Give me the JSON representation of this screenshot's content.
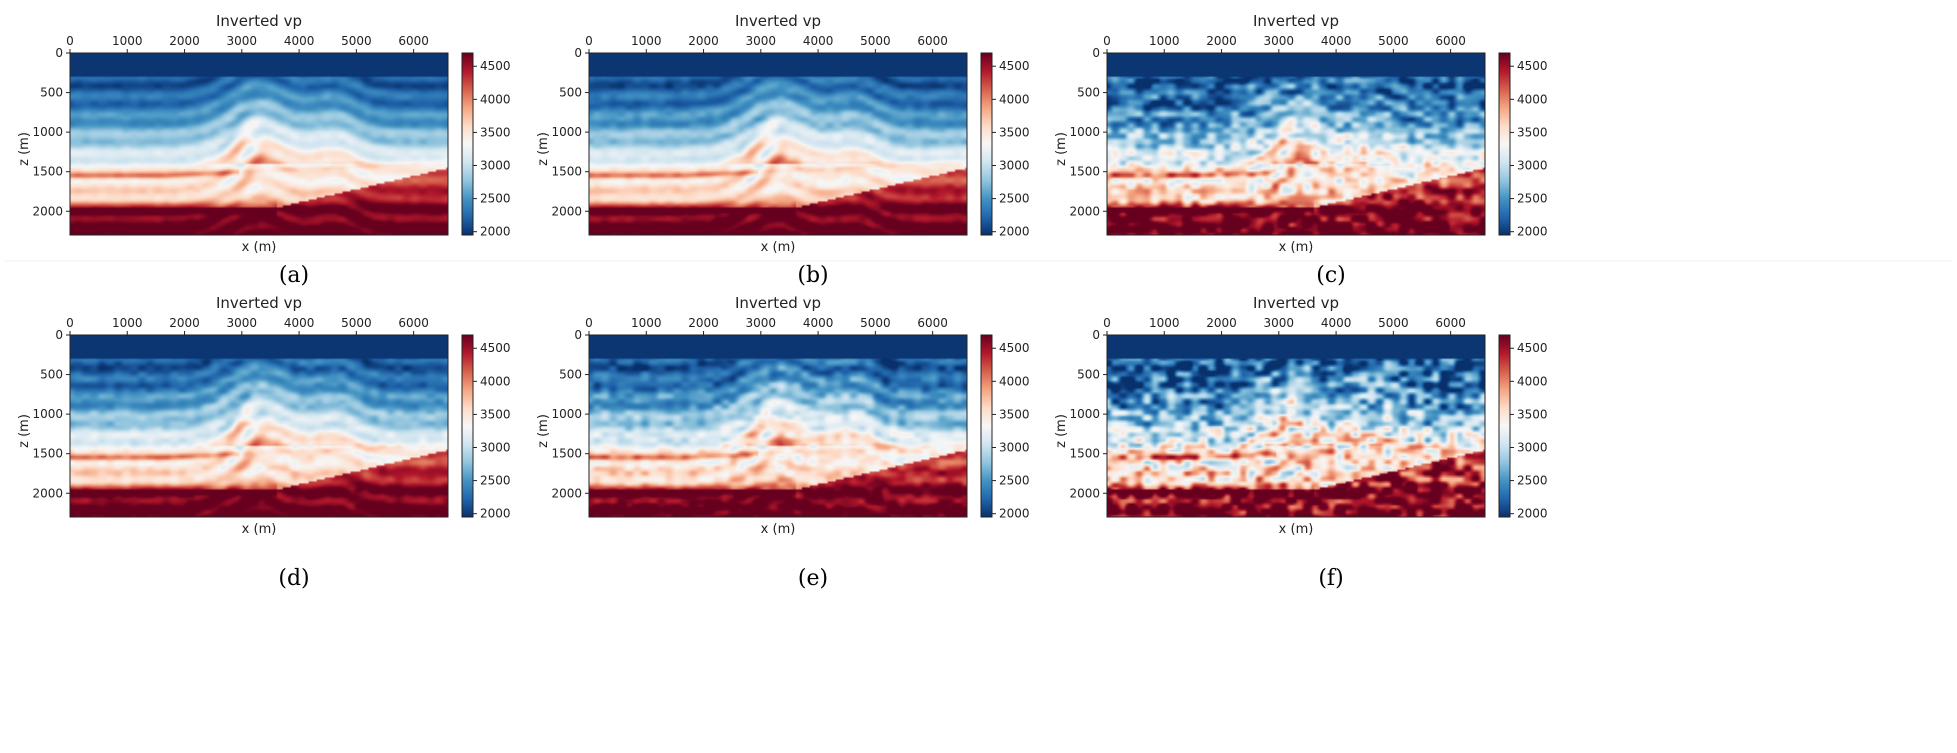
{
  "colormap": {
    "name": "RdBu_r",
    "stops": [
      "#08306b",
      "#2166ac",
      "#4393c3",
      "#92c5de",
      "#d1e5f0",
      "#f7f7f7",
      "#fddbc7",
      "#f4a582",
      "#d6604d",
      "#b2182b",
      "#67001f"
    ]
  },
  "chart_data": [
    {
      "type": "heatmap",
      "panel_label": "(a)",
      "title": "Inverted vp",
      "xlabel": "x (m)",
      "ylabel": "z (m)",
      "x_ticks": [
        0,
        1000,
        2000,
        3000,
        4000,
        5000,
        6000
      ],
      "y_ticks": [
        0,
        500,
        1000,
        1500,
        2000
      ],
      "xlim": [
        0,
        6600
      ],
      "ylim": [
        2300,
        0
      ],
      "colorbar": {
        "ticks": [
          2000,
          2500,
          3000,
          3500,
          4000,
          4500
        ],
        "range": [
          1950,
          4700
        ]
      },
      "noise": 0.02
    },
    {
      "type": "heatmap",
      "panel_label": "(b)",
      "title": "Inverted vp",
      "xlabel": "x (m)",
      "ylabel": "z (m)",
      "x_ticks": [
        0,
        1000,
        2000,
        3000,
        4000,
        5000,
        6000
      ],
      "y_ticks": [
        0,
        500,
        1000,
        1500,
        2000
      ],
      "xlim": [
        0,
        6600
      ],
      "ylim": [
        2300,
        0
      ],
      "colorbar": {
        "ticks": [
          2000,
          2500,
          3000,
          3500,
          4000,
          4500
        ],
        "range": [
          1950,
          4700
        ]
      },
      "noise": 0.03
    },
    {
      "type": "heatmap",
      "panel_label": "(c)",
      "title": "Inverted vp",
      "xlabel": "x (m)",
      "ylabel": "z (m)",
      "x_ticks": [
        0,
        1000,
        2000,
        3000,
        4000,
        5000,
        6000
      ],
      "y_ticks": [
        0,
        500,
        1000,
        1500,
        2000
      ],
      "xlim": [
        0,
        6600
      ],
      "ylim": [
        2300,
        0
      ],
      "colorbar": {
        "ticks": [
          2000,
          2500,
          3000,
          3500,
          4000,
          4500
        ],
        "range": [
          1950,
          4700
        ]
      },
      "noise": 0.14
    },
    {
      "type": "heatmap",
      "panel_label": "(d)",
      "title": "Inverted vp",
      "xlabel": "x (m)",
      "ylabel": "z (m)",
      "x_ticks": [
        0,
        1000,
        2000,
        3000,
        4000,
        5000,
        6000
      ],
      "y_ticks": [
        0,
        500,
        1000,
        1500,
        2000
      ],
      "xlim": [
        0,
        6600
      ],
      "ylim": [
        2300,
        0
      ],
      "colorbar": {
        "ticks": [
          2000,
          2500,
          3000,
          3500,
          4000,
          4500
        ],
        "range": [
          1950,
          4700
        ]
      },
      "noise": 0.04
    },
    {
      "type": "heatmap",
      "panel_label": "(e)",
      "title": "Inverted vp",
      "xlabel": "x (m)",
      "ylabel": "z (m)",
      "x_ticks": [
        0,
        1000,
        2000,
        3000,
        4000,
        5000,
        6000
      ],
      "y_ticks": [
        0,
        500,
        1000,
        1500,
        2000
      ],
      "xlim": [
        0,
        6600
      ],
      "ylim": [
        2300,
        0
      ],
      "colorbar": {
        "ticks": [
          2000,
          2500,
          3000,
          3500,
          4000,
          4500
        ],
        "range": [
          1950,
          4700
        ]
      },
      "noise": 0.07
    },
    {
      "type": "heatmap",
      "panel_label": "(f)",
      "title": "Inverted vp",
      "xlabel": "x (m)",
      "ylabel": "z (m)",
      "x_ticks": [
        0,
        1000,
        2000,
        3000,
        4000,
        5000,
        6000
      ],
      "y_ticks": [
        0,
        500,
        1000,
        1500,
        2000
      ],
      "xlim": [
        0,
        6600
      ],
      "ylim": [
        2300,
        0
      ],
      "colorbar": {
        "ticks": [
          2000,
          2500,
          3000,
          3500,
          4000,
          4500
        ],
        "range": [
          1950,
          4700
        ]
      },
      "noise": 0.2
    }
  ]
}
